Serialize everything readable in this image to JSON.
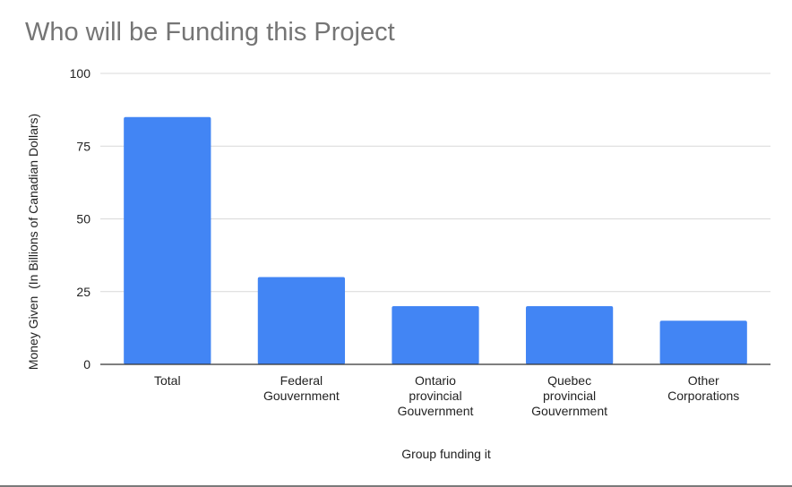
{
  "chart_data": {
    "type": "bar",
    "title": "Who will be Funding this Project",
    "xlabel": "Group funding it",
    "ylabel": "Money Given  (In Billions of Canadian Dollars)",
    "categories": [
      [
        "Total"
      ],
      [
        "Federal",
        "Gouvernment"
      ],
      [
        "Ontario",
        "provincial",
        "Gouvernment"
      ],
      [
        "Quebec",
        "provincial",
        "Gouvernment"
      ],
      [
        "Other",
        "Corporations"
      ]
    ],
    "values": [
      85,
      30,
      20,
      20,
      15
    ],
    "ylim": [
      0,
      100
    ],
    "yticks": [
      "0",
      "25",
      "50",
      "75",
      "100"
    ],
    "grid": true,
    "legend": "none",
    "colors": {
      "bar": "#4285f4",
      "grid": "#d9d9d9",
      "axis": "#333333",
      "title": "#757575"
    }
  }
}
